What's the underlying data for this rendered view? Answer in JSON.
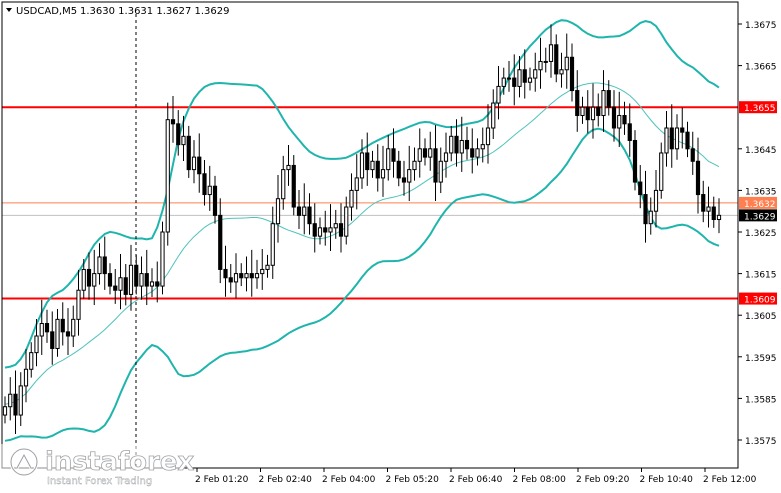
{
  "header": {
    "symbol": "USDCAD,M5",
    "ohlc": "1.3630 1.3631 1.3627 1.3629"
  },
  "logo": {
    "brand": "instaforex",
    "tagline": "Instant Forex Trading"
  },
  "colors": {
    "candle": "#000000",
    "bollinger": "#1fb5ad",
    "ma": "#4ec3bd",
    "level": "#ff0000",
    "level_label_bg": "#ff0000",
    "level_label_text": "#ffffff",
    "thin_level": "#ff7f50",
    "bid_line": "#c0c0c0",
    "current_label_bg": "#000000",
    "current_label_text": "#ffffff"
  },
  "chart_data": {
    "type": "candlestick",
    "y_ticks": [
      "1.3675",
      "1.3665",
      "1.3645",
      "1.3635",
      "1.3625",
      "1.3615",
      "1.3605",
      "1.3595",
      "1.3585",
      "1.3575"
    ],
    "x_ticks": [
      "2 Feb 01:20",
      "2 Feb 02:40",
      "2 Feb 04:00",
      "2 Feb 05:20",
      "2 Feb 06:40",
      "2 Feb 08:00",
      "2 Feb 09:20",
      "2 Feb 10:40",
      "2 Feb 12:00"
    ],
    "levels": [
      {
        "label": "1.3655",
        "value": 1.3655,
        "style": "thick"
      },
      {
        "label": "1.3609",
        "value": 1.3609,
        "style": "thick"
      },
      {
        "label": "1.3632",
        "value": 1.3632,
        "style": "thin"
      }
    ],
    "current_price": {
      "label": "1.3629",
      "value": 1.3629
    },
    "closes": [
      1.3583,
      1.3586,
      1.3581,
      1.3588,
      1.3592,
      1.3596,
      1.36,
      1.3603,
      1.3601,
      1.3597,
      1.3604,
      1.3601,
      1.36,
      1.3604,
      1.3611,
      1.3616,
      1.3612,
      1.3615,
      1.3619,
      1.3615,
      1.3612,
      1.3611,
      1.3614,
      1.361,
      1.3617,
      1.3612,
      1.3615,
      1.3612,
      1.3613,
      1.3612,
      1.3625,
      1.3652,
      1.3651,
      1.3646,
      1.3648,
      1.364,
      1.3643,
      1.3639,
      1.3634,
      1.3636,
      1.3629,
      1.3616,
      1.3614,
      1.3613,
      1.3615,
      1.3614,
      1.3615,
      1.3614,
      1.3615,
      1.3616,
      1.3617,
      1.3627,
      1.3633,
      1.364,
      1.3641,
      1.3631,
      1.3629,
      1.3631,
      1.3627,
      1.3624,
      1.3626,
      1.3625,
      1.3626,
      1.3627,
      1.3624,
      1.3631,
      1.3635,
      1.3638,
      1.3644,
      1.364,
      1.3642,
      1.3638,
      1.364,
      1.3645,
      1.3642,
      1.3638,
      1.3637,
      1.364,
      1.3642,
      1.3645,
      1.3643,
      1.3645,
      1.3637,
      1.3642,
      1.3644,
      1.3648,
      1.3644,
      1.3647,
      1.3645,
      1.3643,
      1.3645,
      1.3646,
      1.365,
      1.3656,
      1.366,
      1.3662,
      1.3662,
      1.366,
      1.3664,
      1.3661,
      1.3662,
      1.3664,
      1.3666,
      1.3666,
      1.367,
      1.3663,
      1.3664,
      1.3667,
      1.3659,
      1.3653,
      1.3655,
      1.3652,
      1.3655,
      1.3653,
      1.3659,
      1.3655,
      1.365,
      1.3653,
      1.3651,
      1.3647,
      1.3637,
      1.3634,
      1.3627,
      1.363,
      1.3635,
      1.3644,
      1.365,
      1.3645,
      1.365,
      1.3649,
      1.3645,
      1.3642,
      1.3634,
      1.363,
      1.3631,
      1.3628,
      1.3629
    ]
  }
}
